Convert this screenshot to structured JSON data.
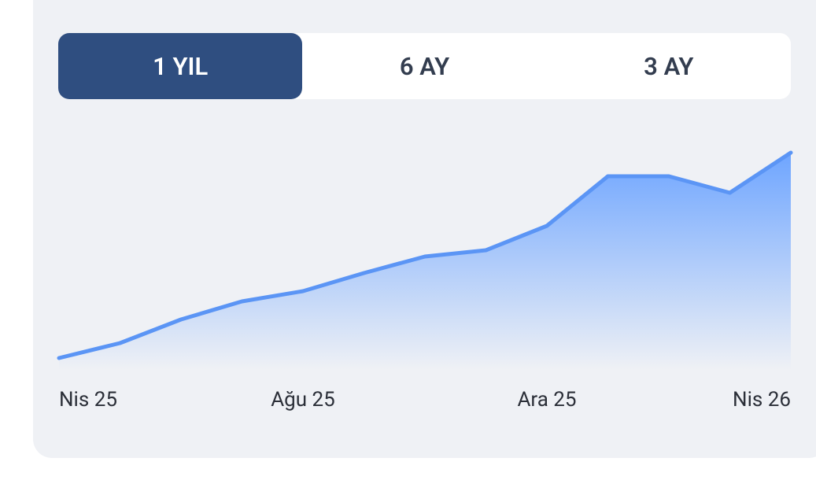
{
  "tabs": [
    "1 YIL",
    "6 AY",
    "3 AY"
  ],
  "chart_data": {
    "type": "area",
    "categories": [
      "Nis 25",
      null,
      null,
      null,
      "Ağu 25",
      null,
      null,
      null,
      "Ara 25",
      null,
      null,
      null,
      "Nis 26"
    ],
    "values": [
      15,
      34,
      64,
      87,
      100,
      123,
      144,
      152,
      183,
      246,
      246,
      225,
      276
    ],
    "color": "#5b95f5",
    "ylim": [
      0,
      290
    ]
  }
}
